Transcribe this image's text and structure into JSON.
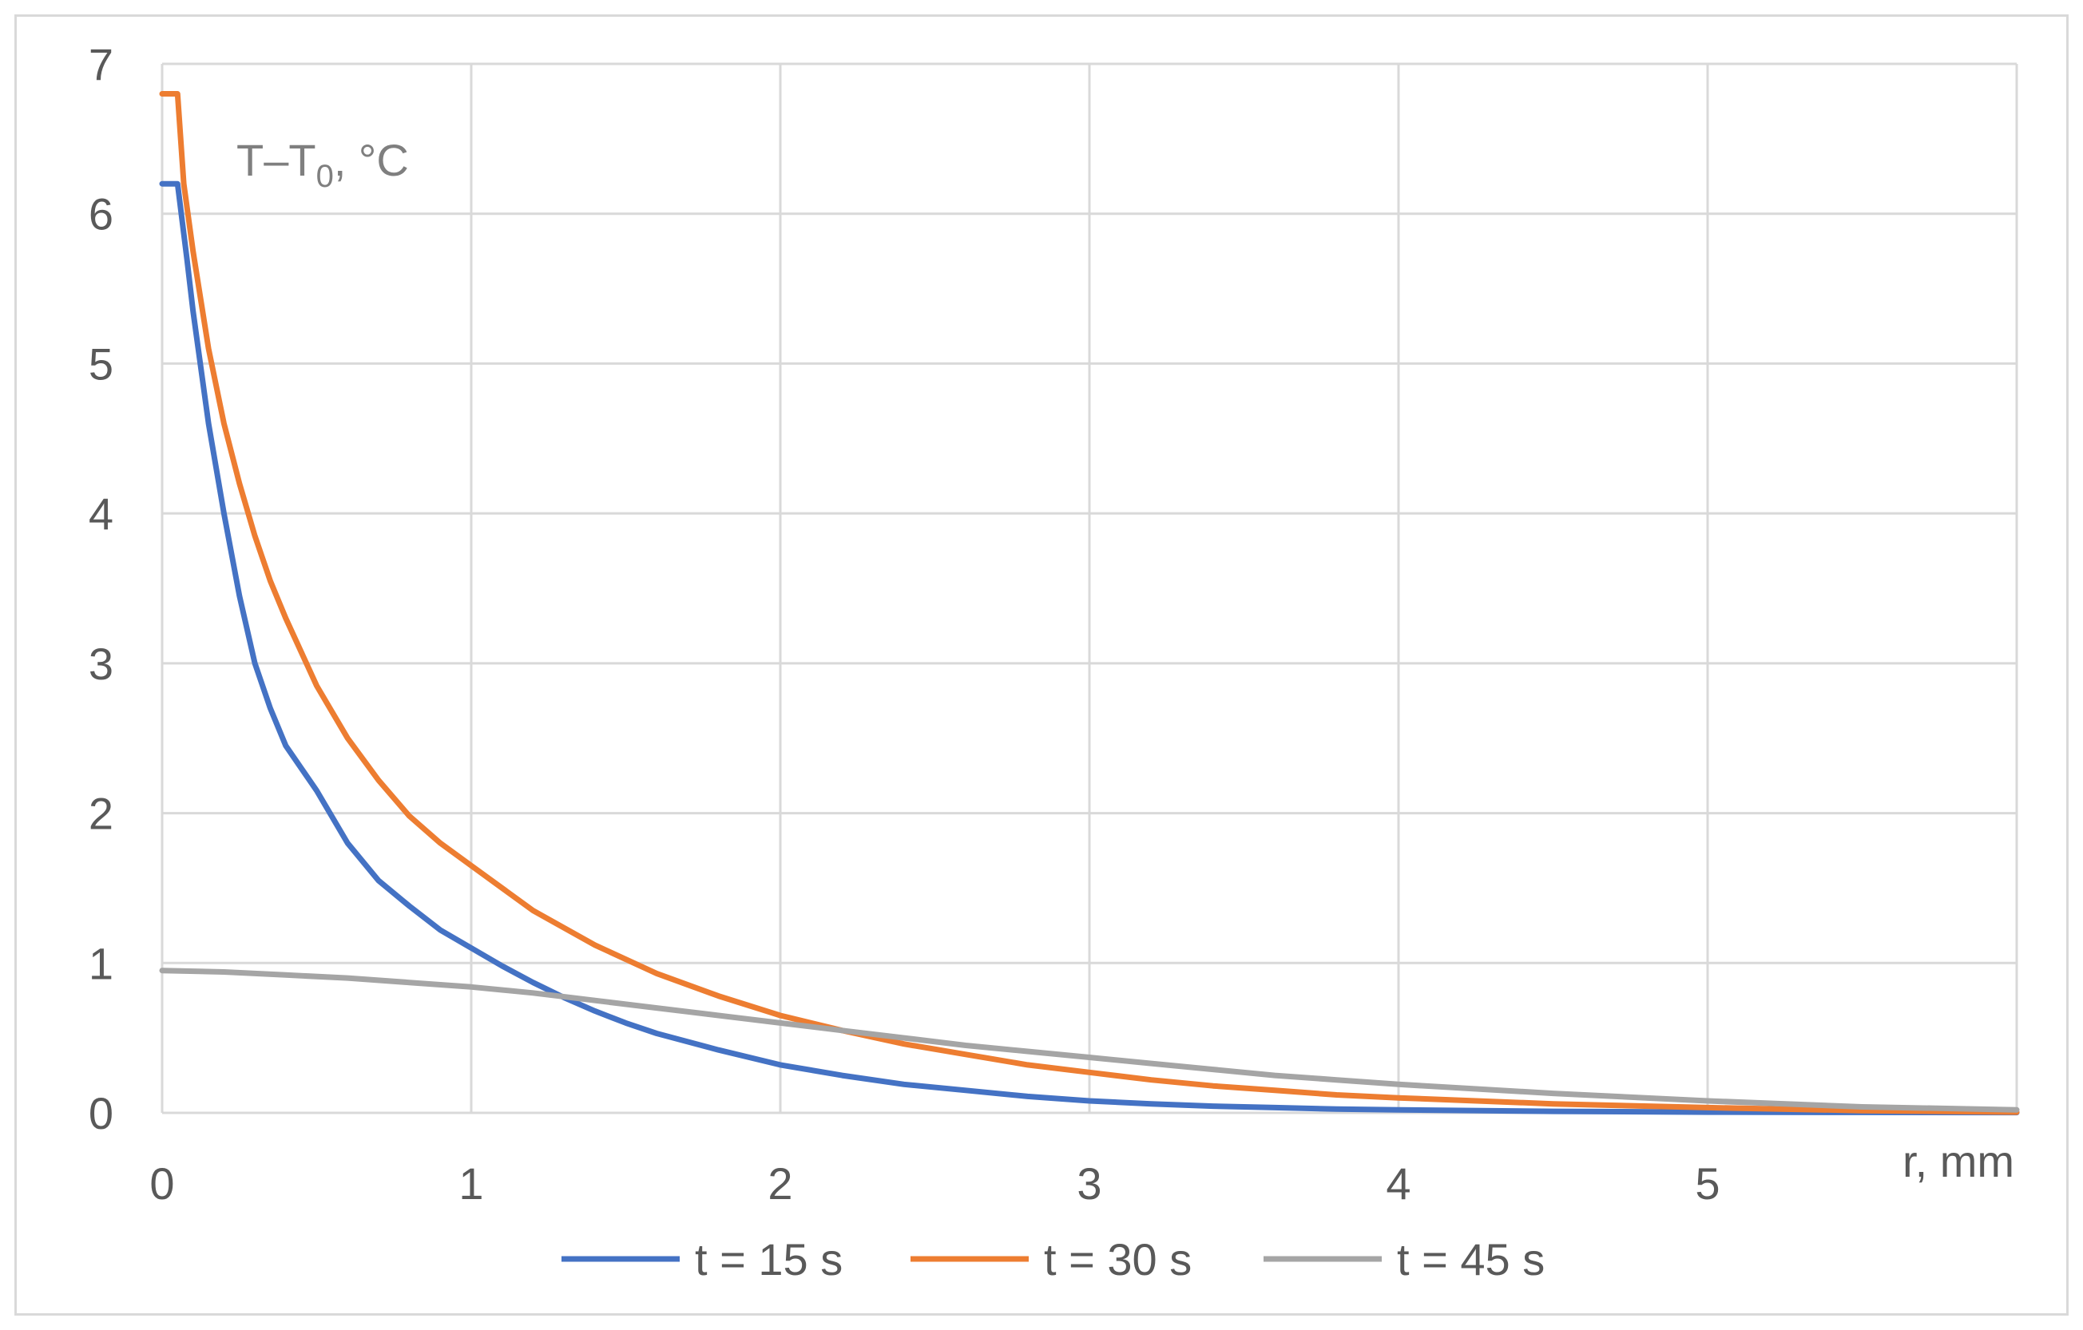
{
  "chart_data": {
    "type": "line",
    "title": "",
    "xlabel": "r, mm",
    "ylabel_main": "T–T",
    "ylabel_sub": "0",
    "ylabel_tail": ", °C",
    "xlim": [
      0,
      6
    ],
    "ylim": [
      0,
      7
    ],
    "xticks": [
      0,
      1,
      2,
      3,
      4,
      5
    ],
    "yticks": [
      0,
      1,
      2,
      3,
      4,
      5,
      6,
      7
    ],
    "grid": true,
    "legend_position": "bottom",
    "series": [
      {
        "name": "t = 15 s",
        "color": "#4472c4",
        "x": [
          0,
          0.05,
          0.08,
          0.1,
          0.15,
          0.2,
          0.25,
          0.3,
          0.35,
          0.4,
          0.5,
          0.6,
          0.7,
          0.8,
          0.9,
          1.0,
          1.1,
          1.2,
          1.3,
          1.4,
          1.5,
          1.6,
          1.8,
          2.0,
          2.2,
          2.4,
          2.6,
          2.8,
          3.0,
          3.2,
          3.4,
          3.6,
          3.8,
          4.0,
          4.5,
          5.0,
          5.5,
          6.0
        ],
        "y": [
          6.2,
          6.2,
          5.7,
          5.35,
          4.6,
          4.0,
          3.45,
          3.0,
          2.7,
          2.45,
          2.15,
          1.8,
          1.55,
          1.38,
          1.22,
          1.1,
          0.98,
          0.87,
          0.77,
          0.68,
          0.6,
          0.53,
          0.42,
          0.32,
          0.25,
          0.19,
          0.15,
          0.11,
          0.08,
          0.06,
          0.045,
          0.035,
          0.025,
          0.02,
          0.01,
          0.005,
          0.003,
          0.002
        ]
      },
      {
        "name": "t = 30 s",
        "color": "#ed7d31",
        "x": [
          0,
          0.05,
          0.07,
          0.1,
          0.15,
          0.2,
          0.25,
          0.3,
          0.35,
          0.4,
          0.5,
          0.6,
          0.7,
          0.8,
          0.9,
          1.0,
          1.2,
          1.4,
          1.6,
          1.8,
          2.0,
          2.2,
          2.4,
          2.6,
          2.8,
          3.0,
          3.2,
          3.4,
          3.6,
          3.8,
          4.0,
          4.5,
          5.0,
          5.5,
          6.0
        ],
        "y": [
          6.8,
          6.8,
          6.2,
          5.75,
          5.1,
          4.6,
          4.2,
          3.85,
          3.55,
          3.3,
          2.85,
          2.5,
          2.22,
          1.98,
          1.8,
          1.65,
          1.35,
          1.12,
          0.93,
          0.78,
          0.65,
          0.55,
          0.46,
          0.39,
          0.32,
          0.27,
          0.22,
          0.18,
          0.15,
          0.12,
          0.1,
          0.06,
          0.035,
          0.015,
          0.005
        ]
      },
      {
        "name": "t = 45 s",
        "color": "#a5a5a5",
        "x": [
          0,
          0.2,
          0.4,
          0.6,
          0.8,
          1.0,
          1.2,
          1.4,
          1.6,
          1.8,
          2.0,
          2.2,
          2.4,
          2.6,
          2.8,
          3.0,
          3.2,
          3.4,
          3.6,
          3.8,
          4.0,
          4.5,
          5.0,
          5.5,
          6.0
        ],
        "y": [
          0.95,
          0.94,
          0.92,
          0.9,
          0.87,
          0.84,
          0.8,
          0.75,
          0.7,
          0.65,
          0.6,
          0.55,
          0.5,
          0.45,
          0.41,
          0.37,
          0.33,
          0.29,
          0.25,
          0.22,
          0.19,
          0.13,
          0.08,
          0.04,
          0.02
        ]
      }
    ]
  }
}
